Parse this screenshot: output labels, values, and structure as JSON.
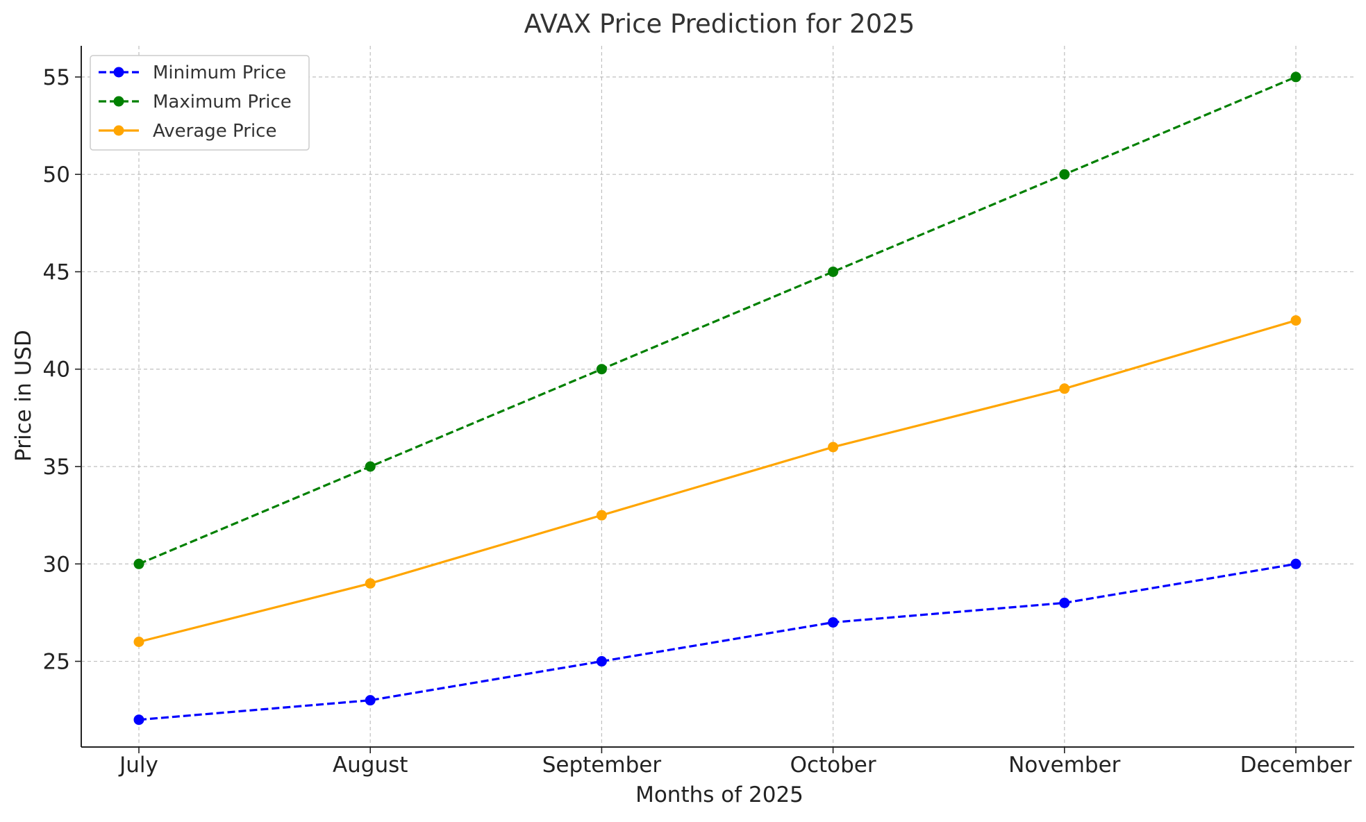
{
  "chart_data": {
    "type": "line",
    "title": "AVAX Price Prediction for 2025",
    "xlabel": "Months of 2025",
    "ylabel": "Price in USD",
    "categories": [
      "July",
      "August",
      "September",
      "October",
      "November",
      "December"
    ],
    "ylim": [
      20.6,
      56.6
    ],
    "yticks": [
      25,
      30,
      35,
      40,
      45,
      50,
      55
    ],
    "grid": true,
    "legend_position": "top-left",
    "series": [
      {
        "name": "Minimum Price",
        "values": [
          22,
          23,
          25,
          27,
          28,
          30
        ],
        "color": "#0000ff",
        "line_style": "dashed",
        "marker": "circle"
      },
      {
        "name": "Maximum Price",
        "values": [
          30,
          35,
          40,
          45,
          50,
          55
        ],
        "color": "#008000",
        "line_style": "dashed",
        "marker": "circle"
      },
      {
        "name": "Average Price",
        "values": [
          26,
          29,
          32.5,
          36,
          39,
          42.5
        ],
        "color": "#ffa500",
        "line_style": "solid",
        "marker": "circle"
      }
    ]
  }
}
